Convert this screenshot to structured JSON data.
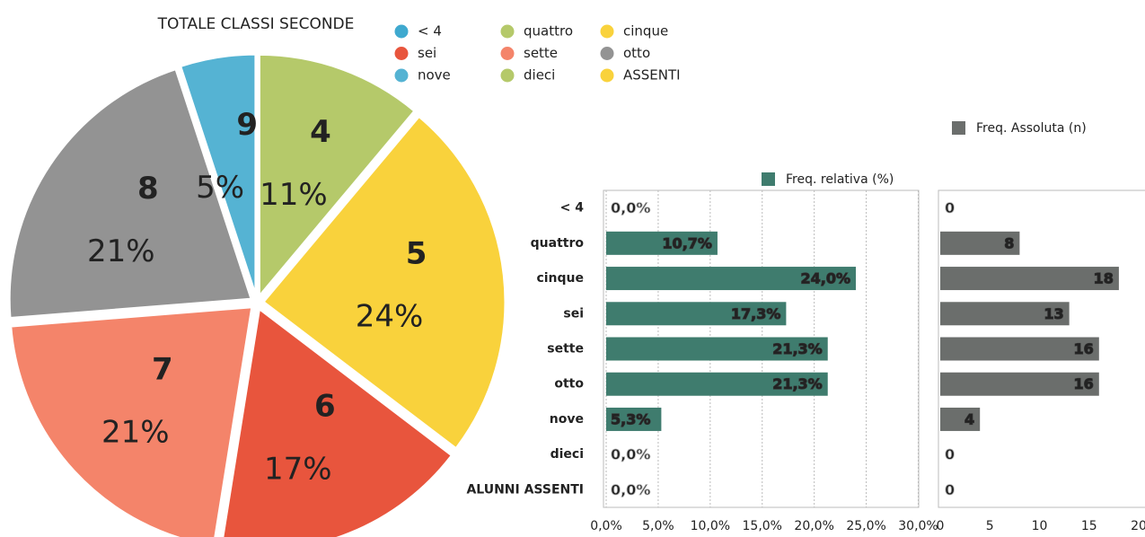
{
  "chart_data": [
    {
      "type": "pie",
      "title": "TOTALE CLASSI SECONDE",
      "categories": [
        "< 4",
        "quattro",
        "cinque",
        "sei",
        "sette",
        "otto",
        "nove",
        "dieci",
        "ASSENTI"
      ],
      "values": [
        0,
        11,
        24,
        17,
        21,
        21,
        5,
        0,
        0
      ],
      "value_labels": [
        null,
        "11%",
        "24%",
        "17%",
        "21%",
        "21%",
        "5%",
        null,
        null
      ],
      "slice_labels": [
        null,
        "4",
        "5",
        "6",
        "7",
        "8",
        "9",
        null,
        null
      ],
      "colors": [
        "#3fa9cf",
        "#b5c96a",
        "#f9d23c",
        "#e8553d",
        "#f4846a",
        "#939393",
        "#55b3d3",
        "#b5c96a",
        "#f9d23c"
      ]
    },
    {
      "type": "hbar",
      "categories": [
        "< 4",
        "quattro",
        "cinque",
        "sei",
        "sette",
        "otto",
        "nove",
        "dieci",
        "ALUNNI ASSENTI"
      ],
      "series": [
        {
          "name": "Freq. relativa (%)",
          "color": "#3f7c6e",
          "values": [
            0,
            10.7,
            24.0,
            17.3,
            21.3,
            21.3,
            5.3,
            0,
            0
          ],
          "value_labels": [
            "0,0%",
            "10,7%",
            "24,0%",
            "17,3%",
            "21,3%",
            "21,3%",
            "5,3%",
            "0,0%",
            "0,0%"
          ]
        }
      ],
      "xlim": [
        0,
        30
      ],
      "xticks": [
        {
          "value": 0,
          "label": "0,0%"
        },
        {
          "value": 5,
          "label": "5,0%"
        },
        {
          "value": 10,
          "label": "10,0%"
        },
        {
          "value": 15,
          "label": "15,0%"
        },
        {
          "value": 20,
          "label": "20,0%"
        },
        {
          "value": 25,
          "label": "25,0%"
        },
        {
          "value": 30,
          "label": "30,0%"
        }
      ],
      "grid": true
    },
    {
      "type": "hbar",
      "series": [
        {
          "name": "Freq. Assoluta (n)",
          "color": "#6b6e6c",
          "values": [
            0,
            8,
            18,
            13,
            16,
            16,
            4,
            0,
            0
          ]
        }
      ],
      "xlim": [
        0,
        20
      ],
      "xticks": [
        0,
        5,
        10,
        15,
        20
      ],
      "grid": false
    }
  ]
}
